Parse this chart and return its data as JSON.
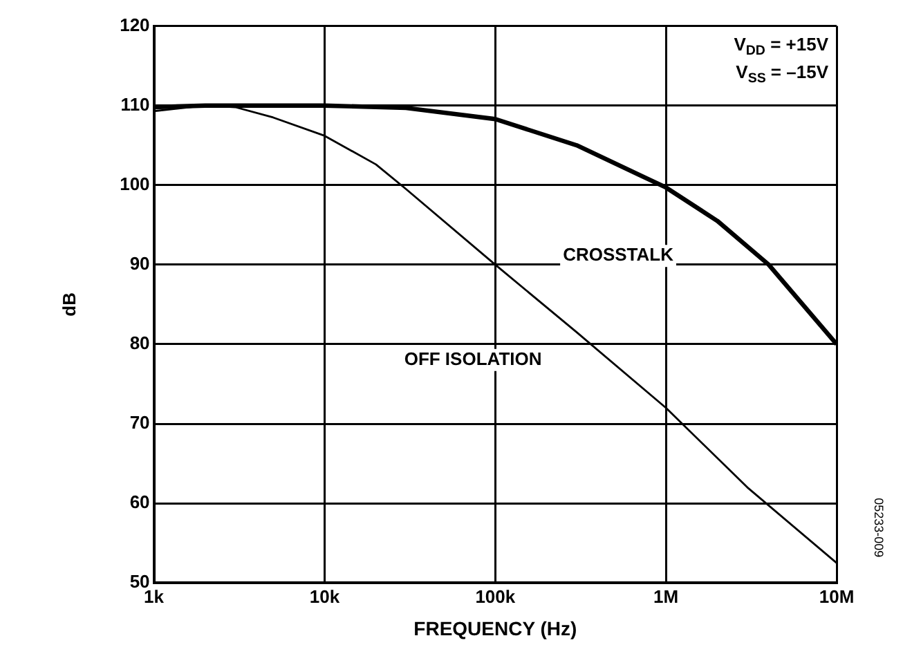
{
  "chart_data": {
    "type": "line",
    "xlabel": "FREQUENCY (Hz)",
    "ylabel": "dB",
    "log": "x",
    "grid": true,
    "legend": false,
    "marker": "none",
    "line_style": "solid",
    "xlim": [
      1000,
      10000000
    ],
    "ylim": [
      50,
      120
    ],
    "xticks": [
      {
        "value": 1000,
        "label": "1k"
      },
      {
        "value": 10000,
        "label": "10k"
      },
      {
        "value": 100000,
        "label": "100k"
      },
      {
        "value": 1000000,
        "label": "1M"
      },
      {
        "value": 10000000,
        "label": "10M"
      }
    ],
    "yticks": [
      50,
      60,
      70,
      80,
      90,
      100,
      110,
      120
    ],
    "series": [
      {
        "name": "CROSSTALK",
        "color": "#000000",
        "x": [
          1000,
          2000,
          5000,
          10000,
          30000,
          100000,
          300000,
          1000000,
          2000000,
          4000000,
          10000000
        ],
        "values": [
          109.8,
          110,
          110,
          110,
          109.7,
          108.3,
          105,
          99.7,
          95.5,
          90,
          80
        ]
      },
      {
        "name": "OFF ISOLATION",
        "color": "#000000",
        "x": [
          1000,
          2000,
          3000,
          5000,
          10000,
          20000,
          30000,
          100000,
          300000,
          1000000,
          3000000,
          10000000
        ],
        "values": [
          109.3,
          110,
          109.8,
          108.5,
          106.2,
          102.6,
          99.5,
          90,
          81.5,
          72,
          62,
          52.5
        ]
      }
    ],
    "annotations": [
      "V$_{DD}$ = +15V",
      "V$_{SS}$ = –15V",
      "05233-009"
    ]
  }
}
